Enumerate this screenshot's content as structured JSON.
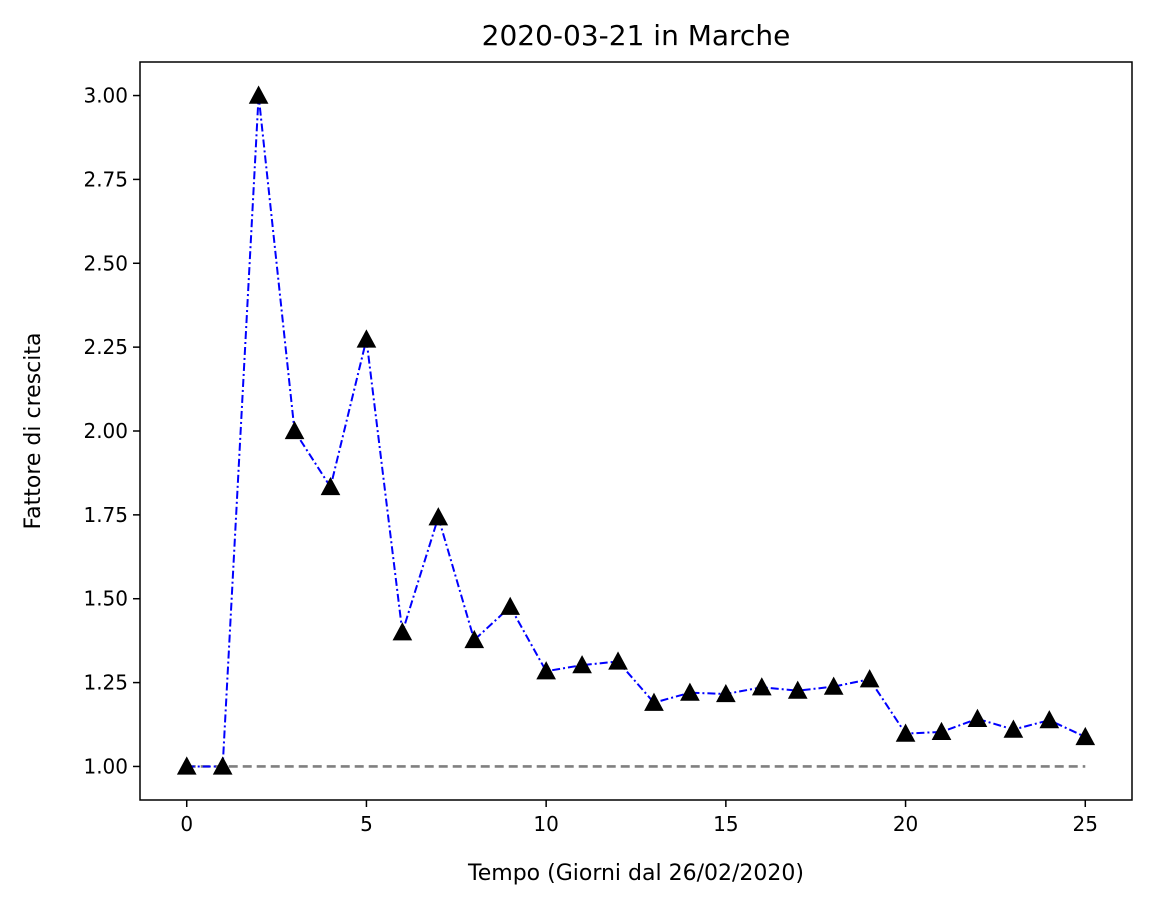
{
  "chart_data": {
    "type": "line",
    "title": "2020-03-21 in Marche",
    "xlabel": "Tempo (Giorni dal 26/02/2020)",
    "ylabel": "Fattore di crescita",
    "xlim": [
      -1.3,
      26.3
    ],
    "ylim": [
      0.9,
      3.1
    ],
    "xticks": [
      0,
      5,
      10,
      15,
      20,
      25
    ],
    "xtick_labels": [
      "0",
      "5",
      "10",
      "15",
      "20",
      "25"
    ],
    "yticks": [
      1.0,
      1.25,
      1.5,
      1.75,
      2.0,
      2.25,
      2.5,
      2.75,
      3.0
    ],
    "ytick_labels": [
      "1.00",
      "1.25",
      "1.50",
      "1.75",
      "2.00",
      "2.25",
      "2.50",
      "2.75",
      "3.00"
    ],
    "grid": false,
    "series": [
      {
        "x": [
          0,
          1,
          2,
          3,
          4,
          5,
          6,
          7,
          8,
          9,
          10,
          11,
          12,
          13,
          14,
          15,
          16,
          17,
          18,
          19,
          20,
          21,
          22,
          23,
          24,
          25
        ],
        "values": [
          1.0,
          1.0,
          3.0,
          2.0,
          1.833,
          2.273,
          1.4,
          1.743,
          1.377,
          1.476,
          1.284,
          1.302,
          1.313,
          1.19,
          1.22,
          1.216,
          1.236,
          1.226,
          1.238,
          1.26,
          1.098,
          1.103,
          1.142,
          1.11,
          1.138,
          1.088
        ],
        "color": "#0000ff",
        "line_style": "dashdot",
        "marker": "triangle-up",
        "marker_color": "#000000"
      },
      {
        "x": [
          0,
          25
        ],
        "values": [
          1.0,
          1.0
        ],
        "color": "#808080",
        "line_style": "dashed",
        "marker": "none"
      }
    ]
  }
}
